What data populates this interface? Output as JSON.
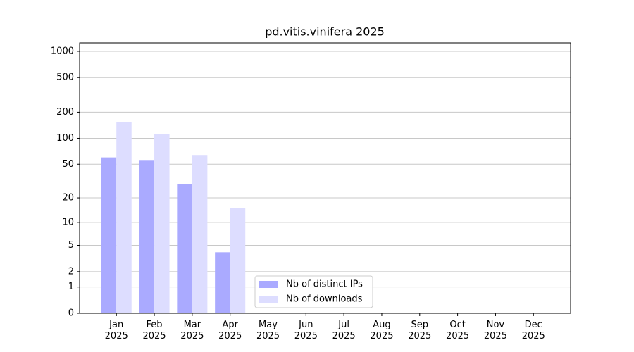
{
  "chart_data": {
    "type": "bar",
    "title": "pd.vitis.vinifera 2025",
    "categories": [
      "Jan\n2025",
      "Feb\n2025",
      "Mar\n2025",
      "Apr\n2025",
      "May\n2025",
      "Jun\n2025",
      "Jul\n2025",
      "Aug\n2025",
      "Sep\n2025",
      "Oct\n2025",
      "Nov\n2025",
      "Dec\n2025"
    ],
    "series": [
      {
        "name": "Nb of distinct IPs",
        "color": "#aaaaff",
        "values": [
          60,
          56,
          29,
          4,
          null,
          null,
          null,
          null,
          null,
          null,
          null,
          null
        ]
      },
      {
        "name": "Nb of downloads",
        "color": "#ddddff",
        "values": [
          155,
          111,
          64,
          15,
          null,
          null,
          null,
          null,
          null,
          null,
          null,
          null
        ]
      }
    ],
    "yscale": "log1p",
    "ylim": [
      0,
      1249
    ],
    "yticks": [
      0,
      1,
      2,
      5,
      10,
      20,
      50,
      100,
      200,
      500,
      1000
    ],
    "grid": true,
    "legend": "lower center"
  }
}
